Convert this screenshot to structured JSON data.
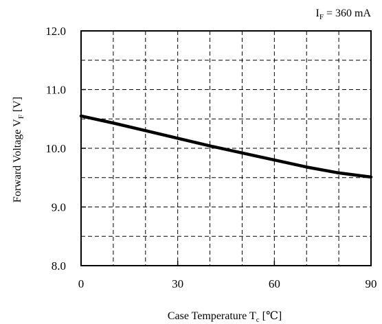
{
  "chart_data": {
    "type": "line",
    "annotation": {
      "main": "I",
      "sub": "F",
      "rest": " = 360 mA"
    },
    "xlabel": {
      "main": "Case Temperature T",
      "sub": "c",
      "rest": " [℃]"
    },
    "ylabel": {
      "main": "Forward Voltage V",
      "sub": "F",
      "rest": " [V]"
    },
    "xlim": [
      0,
      90
    ],
    "ylim": [
      8.0,
      12.0
    ],
    "x_ticks": [
      0,
      30,
      60,
      90
    ],
    "x_tick_labels": [
      "0",
      "30",
      "60",
      "90"
    ],
    "x_grid_step": 10,
    "y_ticks": [
      8.0,
      9.0,
      10.0,
      11.0,
      12.0
    ],
    "y_tick_labels": [
      "8.0",
      "9.0",
      "10.0",
      "11.0",
      "12.0"
    ],
    "y_grid_step": 0.5,
    "grid": true,
    "series": [
      {
        "x": [
          0,
          10,
          20,
          30,
          40,
          50,
          60,
          70,
          80,
          90
        ],
        "y": [
          10.55,
          10.43,
          10.3,
          10.17,
          10.04,
          9.92,
          9.8,
          9.68,
          9.58,
          9.51
        ]
      }
    ]
  }
}
